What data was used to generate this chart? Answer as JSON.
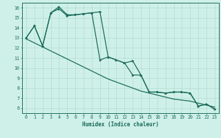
{
  "xlabel": "Humidex (Indice chaleur)",
  "bg_color": "#cff0e8",
  "line_color": "#1a6b5a",
  "grid_color": "#b0ddd0",
  "xlim": [
    -0.5,
    23.5
  ],
  "ylim": [
    5.5,
    16.5
  ],
  "xticks": [
    0,
    1,
    2,
    3,
    4,
    5,
    6,
    7,
    8,
    9,
    10,
    11,
    12,
    13,
    14,
    15,
    16,
    17,
    18,
    19,
    20,
    21,
    22,
    23
  ],
  "yticks": [
    6,
    7,
    8,
    9,
    10,
    11,
    12,
    13,
    14,
    15,
    16
  ],
  "line1_x": [
    0,
    1,
    2,
    3,
    4,
    5,
    6,
    7,
    8,
    9,
    10,
    11,
    12,
    13,
    14,
    15,
    16,
    17,
    18,
    19,
    20,
    21,
    22,
    23
  ],
  "line1_y": [
    12.9,
    12.5,
    12.1,
    11.7,
    11.3,
    10.9,
    10.5,
    10.1,
    9.7,
    9.3,
    8.9,
    8.6,
    8.3,
    8.0,
    7.7,
    7.5,
    7.3,
    7.1,
    6.9,
    6.8,
    6.7,
    6.5,
    6.3,
    6.1
  ],
  "line2_x": [
    0,
    1,
    2,
    3,
    4,
    5,
    6,
    7,
    8,
    9,
    10,
    11,
    12,
    13,
    14,
    15,
    16,
    17,
    18,
    19,
    20,
    21,
    22,
    23
  ],
  "line2_y": [
    13.0,
    14.2,
    12.2,
    15.5,
    15.9,
    15.2,
    15.3,
    15.4,
    15.5,
    10.8,
    11.1,
    10.8,
    10.5,
    9.3,
    9.3,
    7.6,
    7.6,
    7.5,
    7.6,
    7.6,
    7.5,
    6.2,
    6.4,
    5.9
  ],
  "line3_x": [
    0,
    1,
    2,
    3,
    4,
    5,
    6,
    7,
    8,
    9,
    10,
    11,
    12,
    13,
    14,
    15,
    16,
    17,
    18,
    19,
    20,
    21,
    22,
    23
  ],
  "line3_y": [
    13.0,
    14.2,
    12.2,
    15.5,
    16.1,
    15.3,
    15.3,
    15.4,
    15.5,
    15.6,
    11.1,
    10.8,
    10.5,
    10.7,
    9.3,
    7.6,
    7.6,
    7.5,
    7.6,
    7.6,
    7.5,
    6.2,
    6.4,
    5.9
  ],
  "marker2_x": [
    0,
    1,
    2,
    3,
    4,
    5,
    6,
    7,
    8,
    9,
    10,
    11,
    12,
    13,
    14,
    15,
    16,
    17,
    18,
    19,
    20,
    21,
    22,
    23
  ],
  "marker3_x": [
    0,
    3,
    4,
    5,
    6,
    7,
    8,
    9,
    10,
    11,
    12,
    13,
    14,
    15,
    16,
    17,
    18,
    19,
    20,
    21,
    22,
    23
  ]
}
